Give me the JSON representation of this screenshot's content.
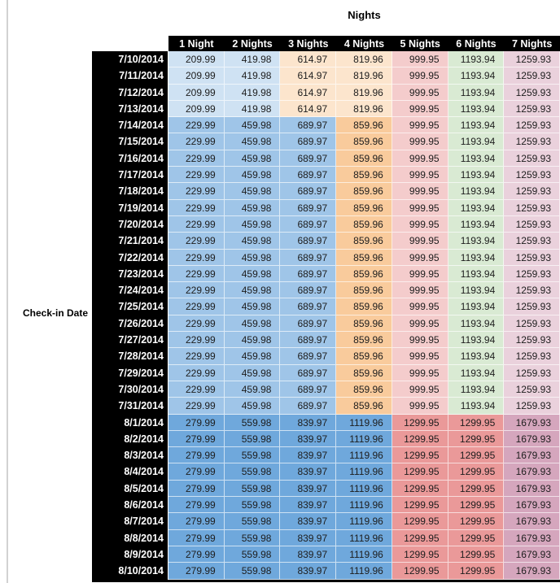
{
  "title": "Nights",
  "row_axis_label": "Check-in Date",
  "colors": {
    "header_bg": "#000000",
    "header_text": "#ffffff",
    "date_col_bg": "#000000",
    "date_col_text": "#ffffff",
    "value_text": "#1d1d1d",
    "left_rule": "#d2d2d2"
  },
  "bands": {
    "early_july": [
      "#CFE2F3",
      "#CFE2F3",
      "#FCE5CD",
      "#FCE5CD",
      "#F4CCCC",
      "#D9EAD3",
      "#EAD1DC"
    ],
    "mid_july": [
      "#9FC5E8",
      "#9FC5E8",
      "#9FC5E8",
      "#F9CB9C",
      "#F4CCCC",
      "#D9EAD3",
      "#EAD1DC"
    ],
    "august": [
      "#6FA8DC",
      "#6FA8DC",
      "#6FA8DC",
      "#6FA8DC",
      "#EA9999",
      "#EA9999",
      "#D5A6BD"
    ]
  },
  "chart_data": {
    "type": "table",
    "title": "Nights",
    "row_header": "Check-in Date",
    "columns": [
      "1 Night",
      "2 Nights",
      "3 Nights",
      "4 Nights",
      "5 Nights",
      "6 Nights",
      "7 Nights"
    ],
    "rows": [
      {
        "date": "7/10/2014",
        "band": "early_july",
        "values": [
          209.99,
          419.98,
          614.97,
          819.96,
          999.95,
          1193.94,
          1259.93
        ]
      },
      {
        "date": "7/11/2014",
        "band": "early_july",
        "values": [
          209.99,
          419.98,
          614.97,
          819.96,
          999.95,
          1193.94,
          1259.93
        ]
      },
      {
        "date": "7/12/2014",
        "band": "early_july",
        "values": [
          209.99,
          419.98,
          614.97,
          819.96,
          999.95,
          1193.94,
          1259.93
        ]
      },
      {
        "date": "7/13/2014",
        "band": "early_july",
        "values": [
          209.99,
          419.98,
          614.97,
          819.96,
          999.95,
          1193.94,
          1259.93
        ]
      },
      {
        "date": "7/14/2014",
        "band": "mid_july",
        "values": [
          229.99,
          459.98,
          689.97,
          859.96,
          999.95,
          1193.94,
          1259.93
        ]
      },
      {
        "date": "7/15/2014",
        "band": "mid_july",
        "values": [
          229.99,
          459.98,
          689.97,
          859.96,
          999.95,
          1193.94,
          1259.93
        ]
      },
      {
        "date": "7/16/2014",
        "band": "mid_july",
        "values": [
          229.99,
          459.98,
          689.97,
          859.96,
          999.95,
          1193.94,
          1259.93
        ]
      },
      {
        "date": "7/17/2014",
        "band": "mid_july",
        "values": [
          229.99,
          459.98,
          689.97,
          859.96,
          999.95,
          1193.94,
          1259.93
        ]
      },
      {
        "date": "7/18/2014",
        "band": "mid_july",
        "values": [
          229.99,
          459.98,
          689.97,
          859.96,
          999.95,
          1193.94,
          1259.93
        ]
      },
      {
        "date": "7/19/2014",
        "band": "mid_july",
        "values": [
          229.99,
          459.98,
          689.97,
          859.96,
          999.95,
          1193.94,
          1259.93
        ]
      },
      {
        "date": "7/20/2014",
        "band": "mid_july",
        "values": [
          229.99,
          459.98,
          689.97,
          859.96,
          999.95,
          1193.94,
          1259.93
        ]
      },
      {
        "date": "7/21/2014",
        "band": "mid_july",
        "values": [
          229.99,
          459.98,
          689.97,
          859.96,
          999.95,
          1193.94,
          1259.93
        ]
      },
      {
        "date": "7/22/2014",
        "band": "mid_july",
        "values": [
          229.99,
          459.98,
          689.97,
          859.96,
          999.95,
          1193.94,
          1259.93
        ]
      },
      {
        "date": "7/23/2014",
        "band": "mid_july",
        "values": [
          229.99,
          459.98,
          689.97,
          859.96,
          999.95,
          1193.94,
          1259.93
        ]
      },
      {
        "date": "7/24/2014",
        "band": "mid_july",
        "values": [
          229.99,
          459.98,
          689.97,
          859.96,
          999.95,
          1193.94,
          1259.93
        ]
      },
      {
        "date": "7/25/2014",
        "band": "mid_july",
        "values": [
          229.99,
          459.98,
          689.97,
          859.96,
          999.95,
          1193.94,
          1259.93
        ]
      },
      {
        "date": "7/26/2014",
        "band": "mid_july",
        "values": [
          229.99,
          459.98,
          689.97,
          859.96,
          999.95,
          1193.94,
          1259.93
        ]
      },
      {
        "date": "7/27/2014",
        "band": "mid_july",
        "values": [
          229.99,
          459.98,
          689.97,
          859.96,
          999.95,
          1193.94,
          1259.93
        ]
      },
      {
        "date": "7/28/2014",
        "band": "mid_july",
        "values": [
          229.99,
          459.98,
          689.97,
          859.96,
          999.95,
          1193.94,
          1259.93
        ]
      },
      {
        "date": "7/29/2014",
        "band": "mid_july",
        "values": [
          229.99,
          459.98,
          689.97,
          859.96,
          999.95,
          1193.94,
          1259.93
        ]
      },
      {
        "date": "7/30/2014",
        "band": "mid_july",
        "values": [
          229.99,
          459.98,
          689.97,
          859.96,
          999.95,
          1193.94,
          1259.93
        ]
      },
      {
        "date": "7/31/2014",
        "band": "mid_july",
        "values": [
          229.99,
          459.98,
          689.97,
          859.96,
          999.95,
          1193.94,
          1259.93
        ]
      },
      {
        "date": "8/1/2014",
        "band": "august",
        "values": [
          279.99,
          559.98,
          839.97,
          1119.96,
          1299.95,
          1299.95,
          1679.93
        ]
      },
      {
        "date": "8/2/2014",
        "band": "august",
        "values": [
          279.99,
          559.98,
          839.97,
          1119.96,
          1299.95,
          1299.95,
          1679.93
        ]
      },
      {
        "date": "8/3/2014",
        "band": "august",
        "values": [
          279.99,
          559.98,
          839.97,
          1119.96,
          1299.95,
          1299.95,
          1679.93
        ]
      },
      {
        "date": "8/4/2014",
        "band": "august",
        "values": [
          279.99,
          559.98,
          839.97,
          1119.96,
          1299.95,
          1299.95,
          1679.93
        ]
      },
      {
        "date": "8/5/2014",
        "band": "august",
        "values": [
          279.99,
          559.98,
          839.97,
          1119.96,
          1299.95,
          1299.95,
          1679.93
        ]
      },
      {
        "date": "8/6/2014",
        "band": "august",
        "values": [
          279.99,
          559.98,
          839.97,
          1119.96,
          1299.95,
          1299.95,
          1679.93
        ]
      },
      {
        "date": "8/7/2014",
        "band": "august",
        "values": [
          279.99,
          559.98,
          839.97,
          1119.96,
          1299.95,
          1299.95,
          1679.93
        ]
      },
      {
        "date": "8/8/2014",
        "band": "august",
        "values": [
          279.99,
          559.98,
          839.97,
          1119.96,
          1299.95,
          1299.95,
          1679.93
        ]
      },
      {
        "date": "8/9/2014",
        "band": "august",
        "values": [
          279.99,
          559.98,
          839.97,
          1119.96,
          1299.95,
          1299.95,
          1679.93
        ]
      },
      {
        "date": "8/10/2014",
        "band": "august",
        "values": [
          279.99,
          559.98,
          839.97,
          1119.96,
          1299.95,
          1299.95,
          1679.93
        ]
      }
    ]
  }
}
